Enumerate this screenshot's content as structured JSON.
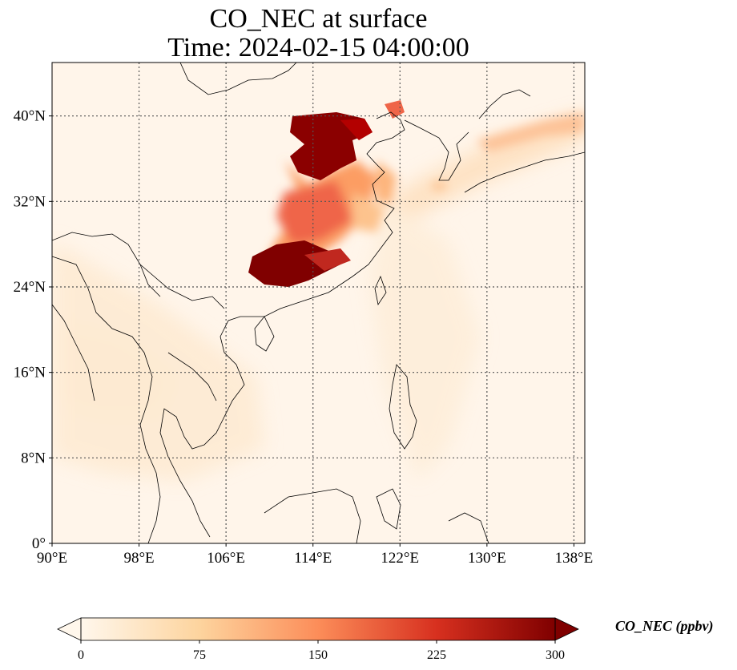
{
  "title_line1": "CO_NEC at surface",
  "title_line2": "Time: 2024-02-15 04:00:00",
  "map": {
    "lon_range": [
      90,
      139
    ],
    "lat_range": [
      0,
      45
    ],
    "x_ticks": [
      {
        "value": 90,
        "label": "90°E"
      },
      {
        "value": 98,
        "label": "98°E"
      },
      {
        "value": 106,
        "label": "106°E"
      },
      {
        "value": 114,
        "label": "114°E"
      },
      {
        "value": 122,
        "label": "122°E"
      },
      {
        "value": 130,
        "label": "130°E"
      },
      {
        "value": 138,
        "label": "138°E"
      }
    ],
    "y_ticks": [
      {
        "value": 0,
        "label": "0°"
      },
      {
        "value": 8,
        "label": "8°N"
      },
      {
        "value": 16,
        "label": "16°N"
      },
      {
        "value": 24,
        "label": "24°N"
      },
      {
        "value": 32,
        "label": "32°N"
      },
      {
        "value": 40,
        "label": "40°N"
      }
    ],
    "gridlines": "dotted",
    "colormap": "OrRd",
    "background_color": "#fff5ea",
    "colors": [
      "#fff7ec",
      "#fdd49e",
      "#fc8d59",
      "#d7301f",
      "#7f0000"
    ]
  },
  "colorbar": {
    "title": "CO_NEC (ppbv)",
    "min": 0,
    "max": 300,
    "ticks": [
      {
        "value": 0,
        "label": "0"
      },
      {
        "value": 75,
        "label": "75"
      },
      {
        "value": 150,
        "label": "150"
      },
      {
        "value": 225,
        "label": "225"
      },
      {
        "value": 300,
        "label": "300"
      }
    ],
    "extend": "both"
  }
}
